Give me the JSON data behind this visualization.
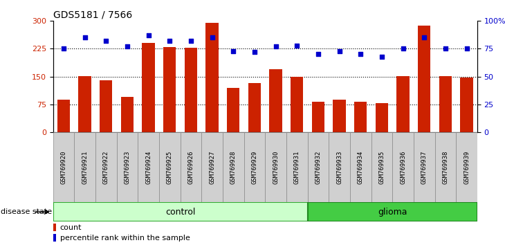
{
  "title": "GDS5181 / 7566",
  "samples": [
    "GSM769920",
    "GSM769921",
    "GSM769922",
    "GSM769923",
    "GSM769924",
    "GSM769925",
    "GSM769926",
    "GSM769927",
    "GSM769928",
    "GSM769929",
    "GSM769930",
    "GSM769931",
    "GSM769932",
    "GSM769933",
    "GSM769934",
    "GSM769935",
    "GSM769936",
    "GSM769937",
    "GSM769938",
    "GSM769939"
  ],
  "bar_heights": [
    88,
    151,
    140,
    95,
    240,
    230,
    228,
    295,
    120,
    133,
    170,
    150,
    82,
    88,
    82,
    78,
    152,
    287,
    152,
    147
  ],
  "percentile_ranks": [
    75,
    85,
    82,
    77,
    87,
    82,
    82,
    85,
    73,
    72,
    77,
    78,
    70,
    73,
    70,
    68,
    75,
    85,
    75,
    75
  ],
  "bar_color": "#cc2200",
  "dot_color": "#0000cc",
  "control_color": "#ccffcc",
  "glioma_color": "#44cc44",
  "control_edge_color": "#33aa33",
  "glioma_edge_color": "#228822",
  "control_label": "control",
  "glioma_label": "glioma",
  "disease_state_label": "disease state",
  "n_control": 12,
  "n_glioma": 8,
  "ylim_left": [
    0,
    300
  ],
  "ylim_right": [
    0,
    100
  ],
  "yticks_left": [
    0,
    75,
    150,
    225,
    300
  ],
  "yticks_right": [
    0,
    25,
    50,
    75,
    100
  ],
  "ytick_labels_right": [
    "0",
    "25",
    "50",
    "75",
    "100%"
  ],
  "grid_values": [
    75,
    150,
    225
  ],
  "legend_count": "count",
  "legend_percentile": "percentile rank within the sample",
  "tick_bg_color": "#d0d0d0",
  "tick_border_color": "#888888"
}
